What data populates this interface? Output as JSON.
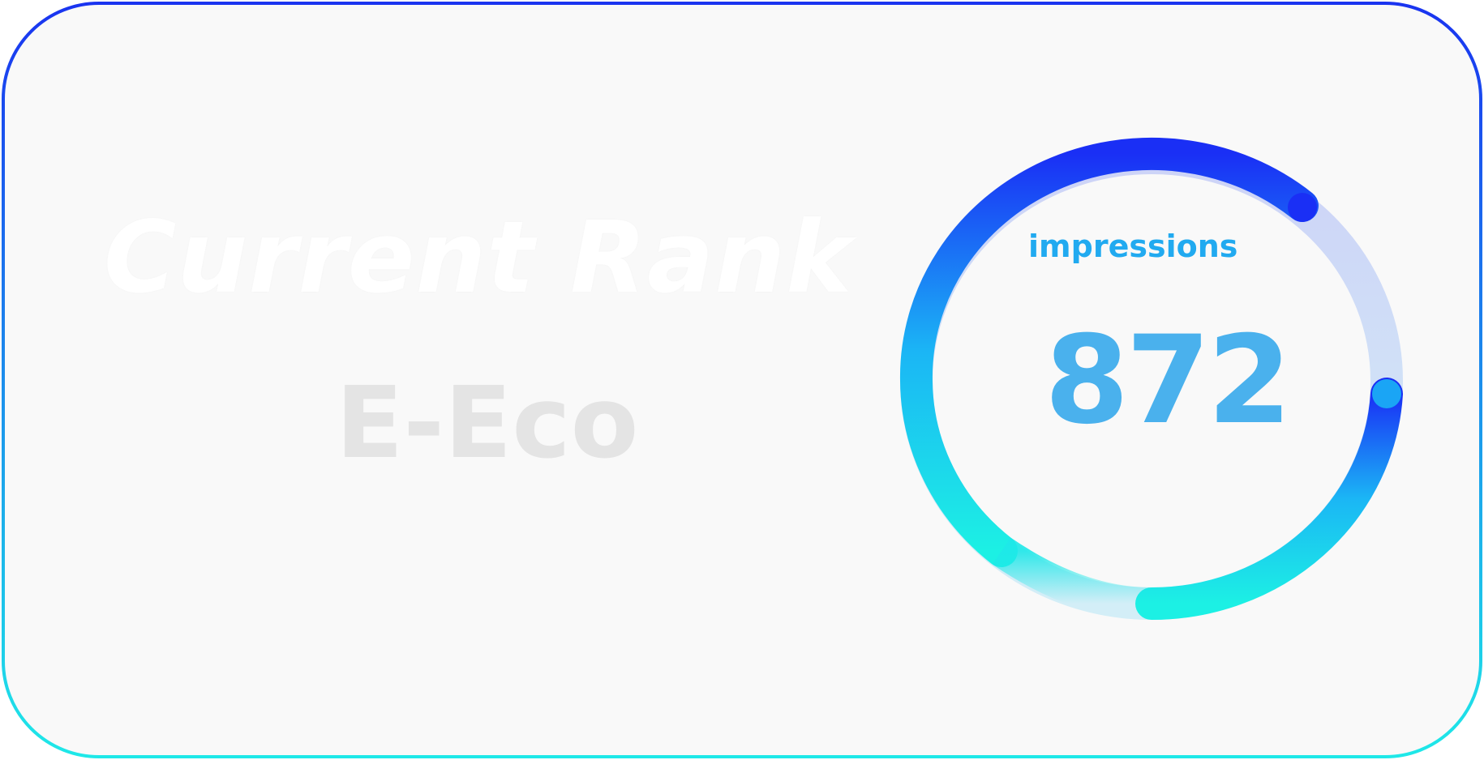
{
  "card": {
    "rank_title": "Current Rank",
    "rank_value": "E-Eco"
  },
  "gauge": {
    "label": "impressions",
    "value": "872",
    "progress_fraction": 0.82
  },
  "colors": {
    "background": "#f9f9f9",
    "border_top": "#1a34f0",
    "border_bottom": "#1ee8e8",
    "arc_start": "#1a2ff5",
    "arc_mid": "#1bb6f5",
    "arc_end": "#1cf0e4",
    "track": "#d7ddf7",
    "label_color": "#21aaf0",
    "value_color": "#4ab1ed"
  },
  "icons": {
    "progress_end_cap": "dot"
  }
}
